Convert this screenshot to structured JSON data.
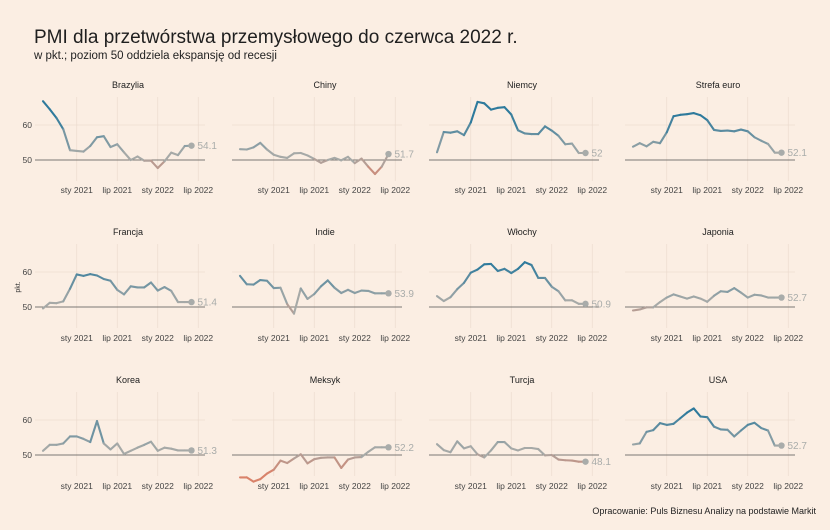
{
  "header": {
    "title": "PMI dla przetwórstwa przemysłowego do czerwca 2022 r.",
    "subtitle": "w pkt.; poziom 50 oddziela ekspansję od recesji",
    "caption": "Opracowanie: Puls Biznesu Analizy na podstawie Markit"
  },
  "colors": {
    "above": "#2e7a9c",
    "mid": "#a6a9a7",
    "below": "#d9826a",
    "reference": "#555555"
  },
  "chart_data": {
    "type": "line",
    "ylabel": "pkt.",
    "x": [
      "2020-08",
      "2020-09",
      "2020-10",
      "2020-11",
      "2020-12",
      "2021-01",
      "2021-02",
      "2021-03",
      "2021-04",
      "2021-05",
      "2021-06",
      "2021-07",
      "2021-08",
      "2021-09",
      "2021-10",
      "2021-11",
      "2021-12",
      "2022-01",
      "2022-02",
      "2022-03",
      "2022-04",
      "2022-05",
      "2022-06"
    ],
    "x_ticks": [
      "sty 2021",
      "lip 2021",
      "sty 2022",
      "lip 2022"
    ],
    "y_ticks": [
      50,
      60
    ],
    "ylim": [
      44,
      68
    ],
    "reference_line": 50,
    "series": [
      {
        "name": "Brazylia",
        "label": "54.1",
        "values": [
          66.8,
          64.5,
          62.0,
          58.8,
          52.8,
          52.6,
          52.4,
          54.0,
          56.5,
          56.8,
          53.7,
          54.5,
          52.2,
          50.0,
          51.0,
          49.8,
          49.8,
          47.7,
          49.6,
          52.1,
          51.4,
          54.0,
          54.1
        ]
      },
      {
        "name": "Chiny",
        "label": "51.7",
        "values": [
          53.1,
          53.0,
          53.6,
          54.9,
          53.0,
          51.5,
          50.9,
          50.6,
          51.9,
          52.0,
          51.3,
          50.3,
          49.2,
          50.0,
          50.6,
          49.9,
          50.9,
          49.1,
          50.4,
          48.1,
          46.0,
          48.1,
          51.7
        ]
      },
      {
        "name": "Niemcy",
        "label": "52",
        "values": [
          52.2,
          58.0,
          57.8,
          58.2,
          57.1,
          60.7,
          66.6,
          66.2,
          64.4,
          64.9,
          65.1,
          63.0,
          58.5,
          57.6,
          57.4,
          57.4,
          59.6,
          58.4,
          56.9,
          54.5,
          54.7,
          52.0,
          52.0
        ]
      },
      {
        "name": "Strefa euro",
        "label": "52.1",
        "values": [
          53.8,
          54.8,
          53.9,
          55.2,
          54.8,
          57.9,
          62.5,
          62.9,
          63.1,
          63.4,
          62.8,
          61.4,
          58.6,
          58.3,
          58.4,
          58.2,
          58.7,
          58.2,
          56.5,
          55.5,
          54.6,
          52.1,
          52.1
        ]
      },
      {
        "name": "Francja",
        "label": "51.4",
        "values": [
          49.6,
          51.2,
          51.1,
          51.6,
          55.2,
          59.3,
          58.9,
          59.4,
          59.0,
          58.0,
          57.5,
          54.9,
          53.6,
          55.9,
          55.6,
          55.6,
          57.0,
          54.7,
          55.7,
          54.6,
          51.4,
          51.4,
          51.4
        ]
      },
      {
        "name": "Indie",
        "label": "53.9",
        "values": [
          58.9,
          56.5,
          56.4,
          57.7,
          57.5,
          55.4,
          55.5,
          50.8,
          48.1,
          55.3,
          52.3,
          53.7,
          55.9,
          57.6,
          55.5,
          54.0,
          54.9,
          54.0,
          54.7,
          54.6,
          53.9,
          53.9,
          53.9
        ]
      },
      {
        "name": "Włochy",
        "label": "50.9",
        "values": [
          53.1,
          51.7,
          52.8,
          55.1,
          56.9,
          59.8,
          60.7,
          62.2,
          62.3,
          60.3,
          60.9,
          59.7,
          60.9,
          62.8,
          62.0,
          58.3,
          58.3,
          55.8,
          54.5,
          51.9,
          51.9,
          50.9,
          50.9
        ]
      },
      {
        "name": "Japonia",
        "label": "52.7",
        "values": [
          49.0,
          49.3,
          49.9,
          49.9,
          51.4,
          52.7,
          53.6,
          53.0,
          52.4,
          53.0,
          52.4,
          51.5,
          53.2,
          54.5,
          54.3,
          55.4,
          54.1,
          52.7,
          53.5,
          53.3,
          52.7,
          52.7,
          52.7
        ]
      },
      {
        "name": "Korea",
        "label": "51.3",
        "values": [
          51.2,
          52.9,
          52.9,
          53.3,
          55.3,
          55.3,
          54.6,
          53.7,
          59.7,
          53.3,
          51.6,
          53.3,
          50.3,
          51.2,
          52.1,
          52.9,
          53.8,
          51.2,
          52.1,
          51.8,
          51.3,
          51.3,
          51.3
        ]
      },
      {
        "name": "Meksyk",
        "label": "52.2",
        "values": [
          43.6,
          43.6,
          42.4,
          43.1,
          44.7,
          45.8,
          48.4,
          47.7,
          49.0,
          50.2,
          47.6,
          48.8,
          49.2,
          49.3,
          49.3,
          46.3,
          48.7,
          49.3,
          49.4,
          50.9,
          52.2,
          52.2,
          52.2
        ]
      },
      {
        "name": "Turcja",
        "label": "48.1",
        "values": [
          53.1,
          51.4,
          50.8,
          53.9,
          51.9,
          52.5,
          50.2,
          49.3,
          51.3,
          53.7,
          53.7,
          51.9,
          51.3,
          52.0,
          52.0,
          51.7,
          49.9,
          50.0,
          48.7,
          48.5,
          48.4,
          48.1,
          48.1
        ]
      },
      {
        "name": "USA",
        "label": "52.7",
        "values": [
          53.0,
          53.3,
          56.6,
          57.1,
          59.1,
          58.6,
          58.9,
          60.5,
          62.1,
          63.3,
          61.0,
          60.8,
          58.1,
          57.3,
          57.2,
          55.3,
          57.0,
          58.6,
          59.2,
          57.7,
          57.0,
          52.7,
          52.7
        ]
      }
    ]
  }
}
